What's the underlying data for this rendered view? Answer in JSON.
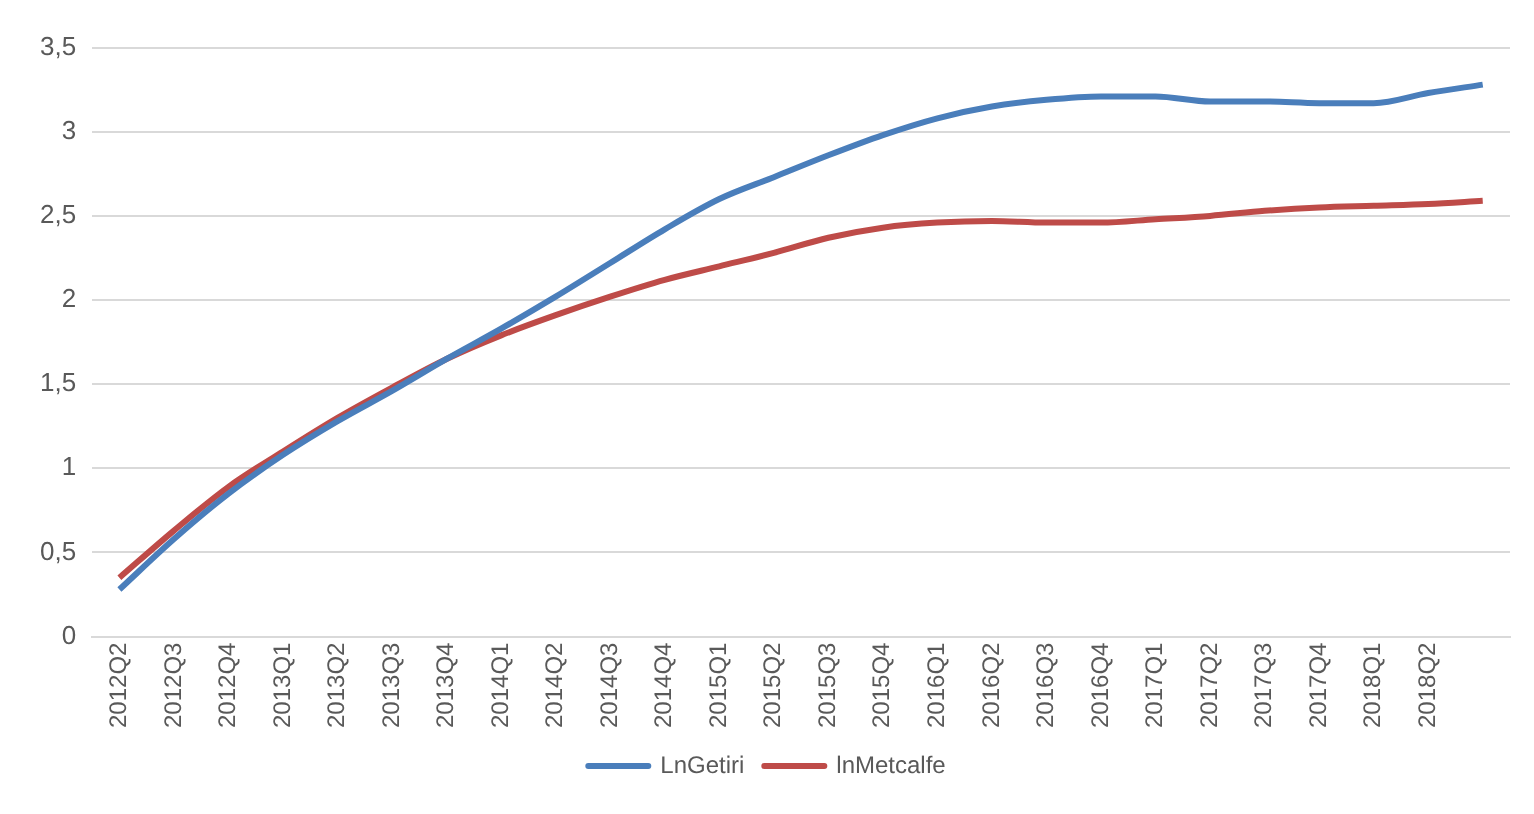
{
  "chart_data": {
    "type": "line",
    "categories": [
      "2012Q2",
      "2012Q3",
      "2012Q4",
      "2013Q1",
      "2013Q2",
      "2013Q3",
      "2013Q4",
      "2014Q1",
      "2014Q2",
      "2014Q3",
      "2014Q4",
      "2015Q1",
      "2015Q2",
      "2015Q3",
      "2015Q4",
      "2016Q1",
      "2016Q2",
      "2016Q3",
      "2016Q4",
      "2017Q1",
      "2017Q2",
      "2017Q3",
      "2017Q4",
      "2018Q1",
      "2018Q2",
      null
    ],
    "series": [
      {
        "name": "LnGetiri",
        "color": "#4a7ebb",
        "values": [
          0.28,
          0.58,
          0.85,
          1.08,
          1.28,
          1.46,
          1.65,
          1.83,
          2.02,
          2.22,
          2.42,
          2.6,
          2.73,
          2.86,
          2.98,
          3.08,
          3.15,
          3.19,
          3.21,
          3.21,
          3.18,
          3.18,
          3.17,
          3.17,
          3.23,
          3.28
        ]
      },
      {
        "name": "lnMetcalfe",
        "color": "#be4b48",
        "values": [
          0.35,
          0.63,
          0.89,
          1.1,
          1.3,
          1.48,
          1.65,
          1.79,
          1.91,
          2.02,
          2.12,
          2.2,
          2.28,
          2.37,
          2.43,
          2.46,
          2.47,
          2.46,
          2.46,
          2.48,
          2.5,
          2.53,
          2.55,
          2.56,
          2.57,
          2.59
        ]
      }
    ],
    "ylim": [
      0,
      3.5
    ],
    "yticks": [
      0,
      {
        "value": 0.5,
        "label": "0,5"
      },
      1,
      {
        "value": 1.5,
        "label": "1,5"
      },
      2,
      {
        "value": 2.5,
        "label": "2,5"
      },
      3,
      {
        "value": 3.5,
        "label": "3,5"
      }
    ],
    "grid": "y",
    "legend": "bottom",
    "marker": "none",
    "line_style": "solid"
  }
}
